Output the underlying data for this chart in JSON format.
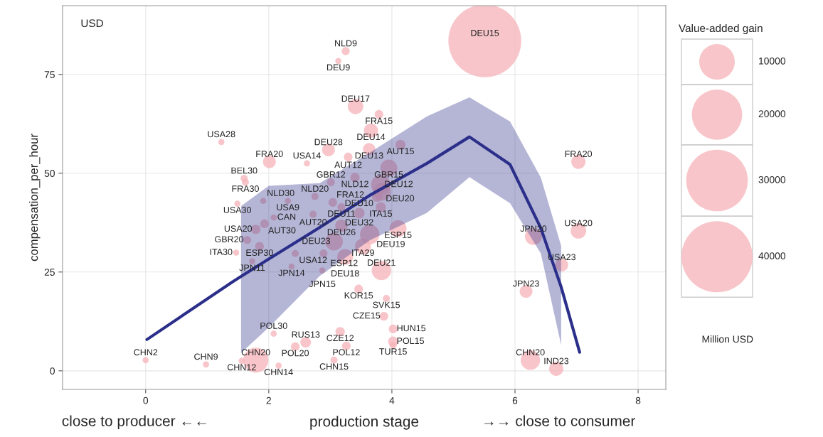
{
  "chart_data": {
    "type": "bubble",
    "xlabel": "production stage",
    "ylabel": "compensation_per_hour",
    "legend_title": "Value-added gain",
    "grid": true,
    "annotations": [
      "USD",
      "close to producer ←←",
      "→→ close to consumer",
      "Million USD"
    ],
    "xlim": [
      -1.35,
      8.45
    ],
    "ylim": [
      -4.7,
      92.4
    ],
    "xticks": [
      0,
      2,
      4,
      6,
      8
    ],
    "yticks": [
      0,
      25,
      50,
      75
    ],
    "size_legend": [
      10000,
      20000,
      30000,
      40000
    ],
    "series": [
      {
        "color": "#f5b3b8",
        "value_labels": [
          "DEU15",
          "NLD9",
          "DEU9",
          "DEU17",
          "FRA15",
          "DEU14",
          "AUT15",
          "DEU13",
          "USA28",
          "FRA20",
          "USA14",
          "DEU28",
          "AUT12",
          "GBR15",
          "BEL30",
          "FRA30",
          "NLD12",
          "GBR12",
          "DEU12",
          "DEU20",
          "NLD20",
          "USA30",
          "NLD30",
          "USA9",
          "FRA12",
          "DEU10",
          "ITA15",
          "DEU11",
          "CAN",
          "AUT20",
          "DEU32",
          "AUT30",
          "DEU26",
          "ESP15",
          "USA20",
          "DEU19",
          "GBR20",
          "ESP30",
          "DEU23",
          "ITA29",
          "ITA30",
          "JPN11",
          "USA12",
          "ESP12",
          "DEU18",
          "JPN14",
          "JPN15",
          "DEU21",
          "KOR15",
          "SVK15",
          "CZE15",
          "HUN15",
          "POL15",
          "TUR15",
          "CZE12",
          "POL12",
          "RUS13",
          "POL20",
          "POL30",
          "CHN2",
          "CHN9",
          "CHN12",
          "CHN20",
          "CHN14",
          "CHN15",
          "JPN20",
          "USA20",
          "FRA20",
          "USA23",
          "JPN23",
          "CHN20",
          "IND23"
        ],
        "x": [
          5.51,
          3.25,
          3.13,
          3.41,
          3.79,
          3.66,
          4.14,
          3.63,
          1.23,
          2.01,
          2.62,
          2.97,
          3.29,
          3.95,
          1.6,
          1.62,
          3.4,
          3.01,
          3.82,
          3.84,
          2.75,
          1.49,
          1.91,
          2.31,
          3.04,
          3.76,
          3.82,
          3.18,
          2.08,
          2.72,
          3.47,
          1.93,
          3.18,
          4.1,
          1.79,
          3.64,
          1.65,
          1.85,
          3.06,
          3.53,
          1.47,
          1.73,
          2.43,
          2.89,
          3.24,
          2.37,
          2.87,
          3.83,
          3.46,
          3.91,
          3.87,
          4.02,
          4.02,
          4.02,
          3.16,
          3.26,
          2.6,
          2.43,
          2.08,
          0,
          0.98,
          1.56,
          1.79,
          2.16,
          3.06,
          6.3,
          7.03,
          7.03,
          6.76,
          6.18,
          6.25,
          6.67
        ],
        "values": [
          83.5,
          80.9,
          78.4,
          66.9,
          64.9,
          60.8,
          57.2,
          56.1,
          57.9,
          52.9,
          52.5,
          55.9,
          54.1,
          51.3,
          48.7,
          47.7,
          48.9,
          47.7,
          47.1,
          45.3,
          44.1,
          42.3,
          43,
          43,
          42.6,
          44.1,
          41.4,
          41.4,
          38.8,
          39.6,
          39.9,
          37.2,
          36.7,
          36,
          35.8,
          34.5,
          33.1,
          31.5,
          32.7,
          31.5,
          29.9,
          27.7,
          29.7,
          29.7,
          28.8,
          26.4,
          25.4,
          25.4,
          20.7,
          18.3,
          13.8,
          10.6,
          7.4,
          6.5,
          9.9,
          6.3,
          7.2,
          6.1,
          9.4,
          2.7,
          1.6,
          2.5,
          2.7,
          1.3,
          2.7,
          34,
          35.4,
          52.9,
          26.8,
          20.1,
          2.7,
          0.5
        ],
        "sizes": [
          42000,
          500,
          300,
          1900,
          600,
          1600,
          800,
          1200,
          300,
          1300,
          300,
          1300,
          600,
          2300,
          400,
          400,
          700,
          500,
          3000,
          2500,
          400,
          300,
          300,
          300,
          600,
          900,
          800,
          500,
          300,
          400,
          900,
          600,
          1200,
          2300,
          700,
          3000,
          500,
          600,
          2500,
          2000,
          300,
          300,
          400,
          500,
          2000,
          300,
          300,
          3000,
          600,
          400,
          600,
          600,
          800,
          400,
          700,
          600,
          900,
          600,
          300,
          300,
          300,
          300,
          5000,
          300,
          400,
          2300,
          1900,
          1600,
          1300,
          1300,
          3000,
          1600
        ]
      },
      {
        "type": "line",
        "color": "#2b2f8a",
        "x": [
          0.02,
          1.41,
          1.55,
          2.0,
          2.83,
          3.64,
          4.57,
          5.26,
          5.92,
          6.42,
          6.75,
          7.05
        ],
        "values": [
          7.9,
          22.5,
          23.9,
          28.3,
          36.3,
          44.4,
          52.5,
          59.2,
          52.2,
          36.1,
          21.2,
          4.7
        ],
        "lower": [
          null,
          null,
          4.5,
          11,
          24,
          33,
          40,
          49,
          42.4,
          29.7,
          6.5,
          null
        ],
        "upper": [
          null,
          null,
          41.7,
          46.8,
          47.5,
          55.2,
          64.4,
          69.2,
          63.1,
          48.9,
          31.6,
          null
        ]
      }
    ]
  }
}
